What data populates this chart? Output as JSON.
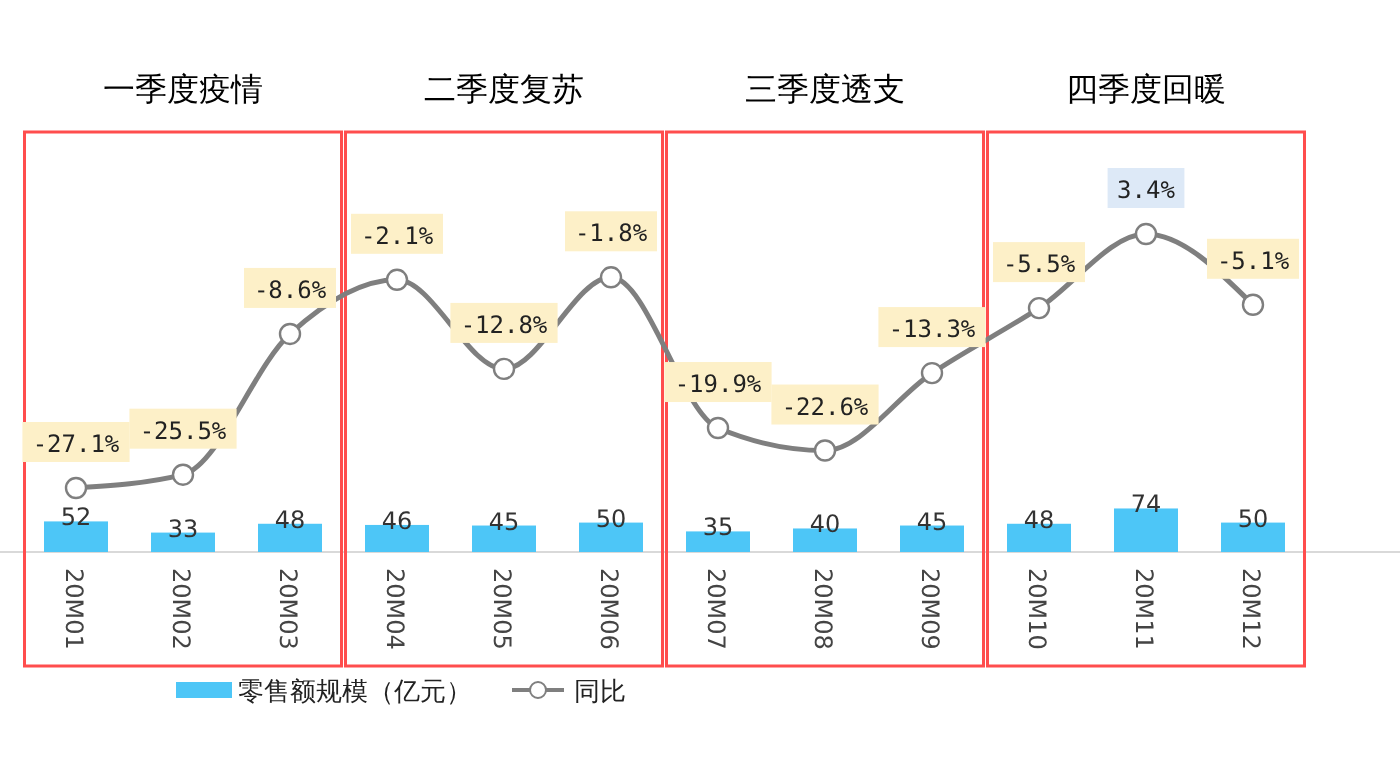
{
  "chart_data": [
    {
      "type": "bar",
      "categories": [
        "20M01",
        "20M02",
        "20M03",
        "20M04",
        "20M05",
        "20M06",
        "20M07",
        "20M08",
        "20M09",
        "20M10",
        "20M11",
        "20M12"
      ],
      "series": [
        {
          "name": "零售额规模（亿元）",
          "color": "#4dc6f7",
          "values": [
            52,
            33,
            48,
            46,
            45,
            50,
            35,
            40,
            45,
            48,
            74,
            50
          ]
        }
      ],
      "data_labels": true,
      "annotations": [
        "一季度疫情",
        "二季度复苏",
        "三季度透支",
        "四季度回暖"
      ],
      "legend": "bottom"
    },
    {
      "type": "line",
      "categories": [
        "20M01",
        "20M02",
        "20M03",
        "20M04",
        "20M05",
        "20M06",
        "20M07",
        "20M08",
        "20M09",
        "20M10",
        "20M11",
        "20M12"
      ],
      "series": [
        {
          "name": "同比",
          "color": "#7f7f7f",
          "values": [
            -27.1,
            -25.5,
            -8.6,
            -2.1,
            -12.8,
            -1.8,
            -19.9,
            -22.6,
            -13.3,
            -5.5,
            3.4,
            -5.1
          ],
          "value_labels": [
            "-27.1%",
            "-25.5%",
            "-8.6%",
            "-2.1%",
            "-12.8%",
            "-1.8%",
            "-19.9%",
            "-22.6%",
            "-13.3%",
            "-5.5%",
            "3.4%",
            "-5.1%"
          ]
        }
      ],
      "marker": "circle",
      "tick_labels": false,
      "legend": "bottom"
    }
  ]
}
